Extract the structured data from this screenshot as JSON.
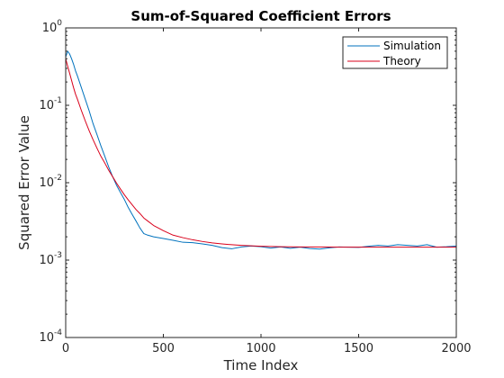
{
  "chart_data": {
    "type": "line",
    "title": "Sum-of-Squared Coefficient Errors",
    "xlabel": "Time Index",
    "ylabel": "Squared Error Value",
    "xlim": [
      0,
      2000
    ],
    "ylim": [
      0.0001,
      1
    ],
    "yscale": "log",
    "grid": false,
    "legend_position": "top-right",
    "x_ticks": [
      {
        "value": 0,
        "label": "0"
      },
      {
        "value": 500,
        "label": "500"
      },
      {
        "value": 1000,
        "label": "1000"
      },
      {
        "value": 1500,
        "label": "1500"
      },
      {
        "value": 2000,
        "label": "2000"
      }
    ],
    "y_ticks": [
      {
        "value": 1,
        "base": "10",
        "exp": "0"
      },
      {
        "value": 0.1,
        "base": "10",
        "exp": "-1"
      },
      {
        "value": 0.01,
        "base": "10",
        "exp": "-2"
      },
      {
        "value": 0.001,
        "base": "10",
        "exp": "-3"
      },
      {
        "value": 0.0001,
        "base": "10",
        "exp": "-4"
      }
    ],
    "series": [
      {
        "name": "Simulation",
        "color": "#0072bd",
        "x": [
          0,
          10,
          20,
          30,
          40,
          50,
          60,
          80,
          100,
          120,
          140,
          160,
          180,
          200,
          220,
          240,
          260,
          280,
          300,
          320,
          340,
          360,
          380,
          400,
          420,
          450,
          500,
          550,
          600,
          650,
          700,
          750,
          800,
          850,
          900,
          950,
          1000,
          1050,
          1100,
          1150,
          1200,
          1250,
          1300,
          1350,
          1400,
          1450,
          1500,
          1550,
          1600,
          1650,
          1700,
          1750,
          1800,
          1850,
          1900,
          1950,
          2000
        ],
        "y": [
          0.42,
          0.5,
          0.46,
          0.4,
          0.34,
          0.28,
          0.24,
          0.17,
          0.12,
          0.085,
          0.058,
          0.042,
          0.03,
          0.022,
          0.016,
          0.012,
          0.0093,
          0.0075,
          0.0061,
          0.0048,
          0.0039,
          0.0032,
          0.0026,
          0.0022,
          0.0021,
          0.002,
          0.0019,
          0.0018,
          0.0017,
          0.00168,
          0.00162,
          0.00155,
          0.00145,
          0.0014,
          0.00148,
          0.00152,
          0.00149,
          0.00143,
          0.00148,
          0.00142,
          0.00147,
          0.00141,
          0.00139,
          0.00144,
          0.00148,
          0.00147,
          0.00146,
          0.00151,
          0.00155,
          0.00152,
          0.00158,
          0.00155,
          0.00152,
          0.00158,
          0.00147,
          0.00149,
          0.00152
        ]
      },
      {
        "name": "Theory",
        "color": "#d9001b",
        "x": [
          0,
          10,
          20,
          30,
          40,
          50,
          60,
          80,
          100,
          120,
          140,
          160,
          180,
          200,
          220,
          240,
          260,
          280,
          300,
          320,
          340,
          360,
          380,
          400,
          420,
          450,
          500,
          550,
          600,
          650,
          700,
          750,
          800,
          850,
          900,
          950,
          1000,
          1100,
          1200,
          1300,
          1400,
          1500,
          1600,
          1700,
          1800,
          1900,
          2000
        ],
        "y": [
          0.4,
          0.32,
          0.26,
          0.21,
          0.17,
          0.14,
          0.12,
          0.086,
          0.063,
          0.047,
          0.036,
          0.028,
          0.022,
          0.018,
          0.0145,
          0.012,
          0.0099,
          0.0083,
          0.007,
          0.006,
          0.0052,
          0.0045,
          0.004,
          0.0035,
          0.0032,
          0.0028,
          0.0024,
          0.0021,
          0.00195,
          0.00183,
          0.00174,
          0.00167,
          0.00162,
          0.00158,
          0.00155,
          0.00153,
          0.00151,
          0.00149,
          0.00148,
          0.00148,
          0.00147,
          0.00147,
          0.00147,
          0.00147,
          0.00147,
          0.00147,
          0.00147
        ]
      }
    ]
  }
}
